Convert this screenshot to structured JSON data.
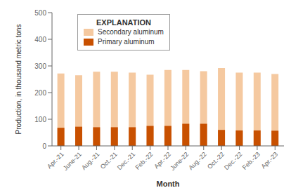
{
  "chart_data": {
    "type": "bar",
    "categories": [
      "Apr.-21",
      "June-21",
      "Aug.-21",
      "Oct.-21",
      "Dec.-21",
      "Feb.-22",
      "Apr.-22",
      "June-22",
      "Aug.-22",
      "Oct.-22",
      "Dec.-22",
      "Feb.-23",
      "Apr.-23"
    ],
    "series": [
      {
        "name": "Secondary aluminum",
        "color": "#F5C9A0",
        "values": [
          272,
          265,
          278,
          278,
          275,
          267,
          285,
          285,
          280,
          292,
          275,
          275,
          270
        ]
      },
      {
        "name": "Primary aluminum",
        "color": "#C85000",
        "values": [
          68,
          72,
          70,
          70,
          70,
          75,
          75,
          83,
          83,
          60,
          58,
          58,
          57
        ]
      }
    ],
    "xlabel": "Month",
    "ylabel": "Production, in thousand metric tons",
    "legend_title": "EXPLANATION",
    "ylim": [
      0,
      500
    ],
    "yticks": [
      0,
      100,
      200,
      300,
      400,
      500
    ],
    "grid": false,
    "legend": "upper left",
    "stacked": false
  }
}
